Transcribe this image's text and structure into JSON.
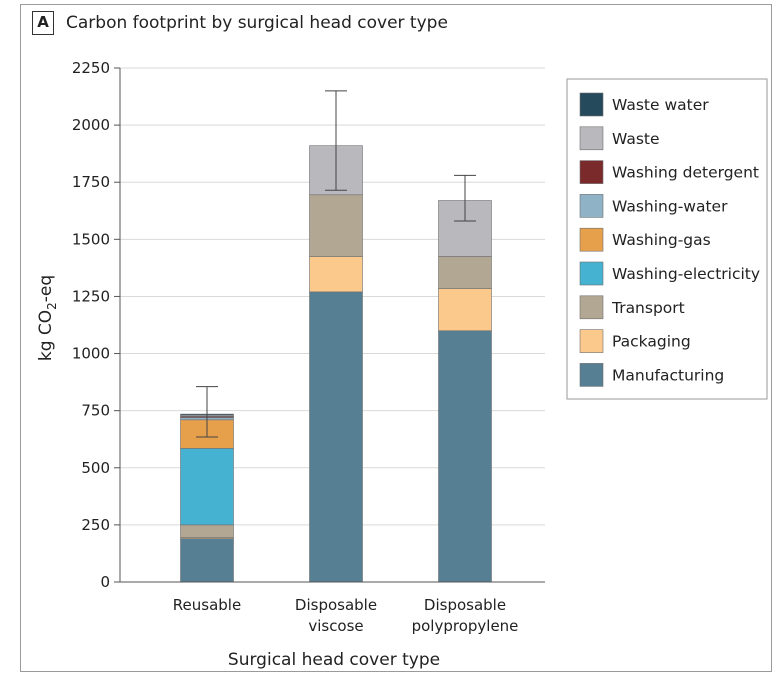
{
  "panel": {
    "letter": "A",
    "title": "Carbon footprint by surgical head cover type"
  },
  "chart_data": {
    "type": "bar",
    "stacked": true,
    "title": "Carbon footprint by surgical head cover type",
    "xlabel": "Surgical head cover type",
    "ylabel": "kg CO2-eq",
    "ylabel_parts": {
      "main": "kg CO",
      "sub": "2",
      "tail": "-eq"
    },
    "ylim": [
      0,
      2250
    ],
    "yticks": [
      0,
      250,
      500,
      750,
      1000,
      1250,
      1500,
      1750,
      2000,
      2250
    ],
    "grid": true,
    "legend_position": "right",
    "categories": [
      {
        "lines": [
          "Reusable"
        ]
      },
      {
        "lines": [
          "Disposable",
          "viscose"
        ]
      },
      {
        "lines": [
          "Disposable",
          "polypropylene"
        ]
      }
    ],
    "series": [
      {
        "name": "Manufacturing",
        "color": "#567f93",
        "values": [
          190,
          1270,
          1100
        ]
      },
      {
        "name": "Packaging",
        "color": "#fcc98d",
        "values": [
          5,
          155,
          185
        ]
      },
      {
        "name": "Transport",
        "color": "#b2a792",
        "values": [
          55,
          270,
          140
        ]
      },
      {
        "name": "Washing-electricity",
        "color": "#44b2d0",
        "values": [
          335,
          0,
          0
        ]
      },
      {
        "name": "Washing-gas",
        "color": "#e6a04b",
        "values": [
          125,
          0,
          0
        ]
      },
      {
        "name": "Washing-water",
        "color": "#8fb2c6",
        "values": [
          10,
          0,
          0
        ]
      },
      {
        "name": "Washing detergent",
        "color": "#7a2a2a",
        "values": [
          5,
          0,
          0
        ]
      },
      {
        "name": "Waste",
        "color": "#b9b9bd",
        "values": [
          5,
          215,
          245
        ]
      },
      {
        "name": "Waste water",
        "color": "#244a5c",
        "values": [
          5,
          0,
          0
        ]
      }
    ],
    "totals": [
      735,
      1910,
      1670
    ],
    "error_bars": [
      {
        "low": 635,
        "high": 855
      },
      {
        "low": 1715,
        "high": 2150
      },
      {
        "low": 1580,
        "high": 1780
      }
    ]
  }
}
